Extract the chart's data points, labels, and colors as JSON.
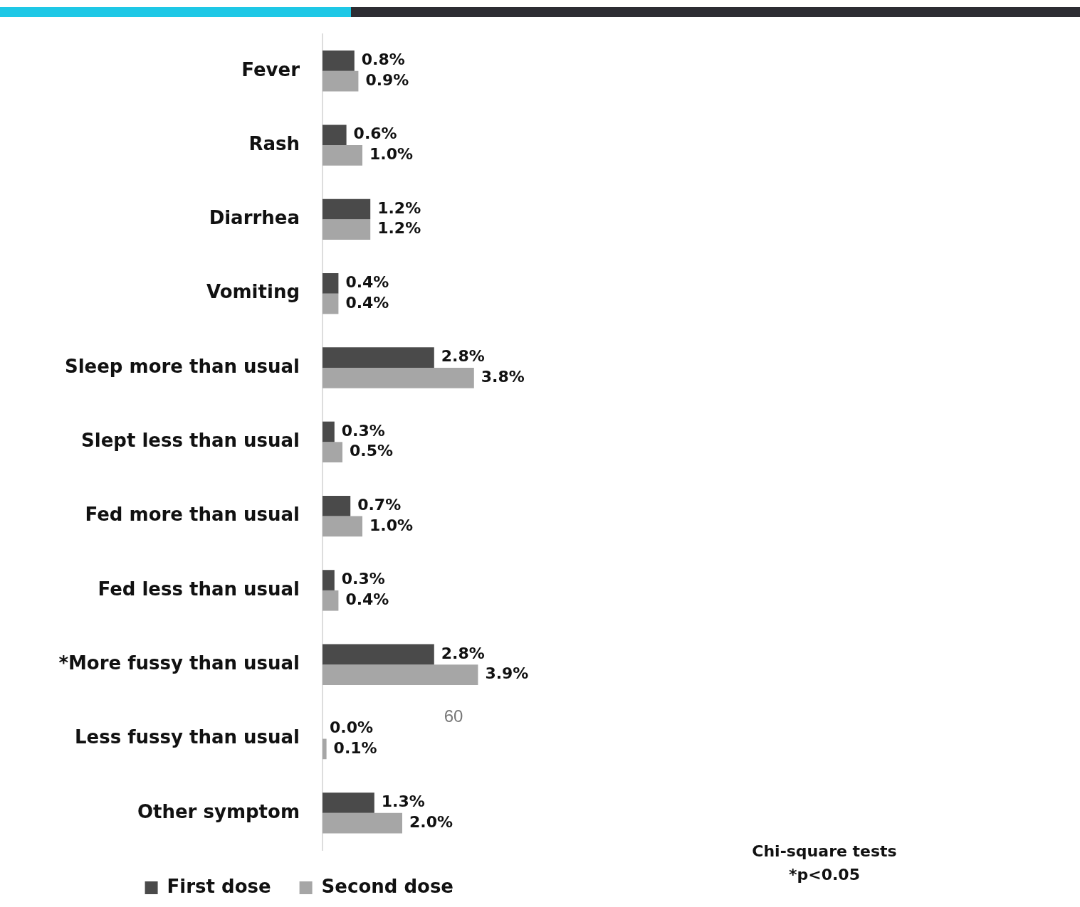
{
  "chart_data": {
    "type": "bar",
    "orientation": "horizontal",
    "categories": [
      "Fever",
      "Rash",
      "Diarrhea",
      "Vomiting",
      "Sleep more than usual",
      "Slept less than usual",
      "Fed more than usual",
      "Fed less than usual",
      "*More fussy than usual",
      "Less fussy than usual",
      "Other symptom"
    ],
    "series": [
      {
        "name": "First dose",
        "color": "#4a4a4a",
        "values": [
          0.8,
          0.6,
          1.2,
          0.4,
          2.8,
          0.3,
          0.7,
          0.3,
          2.8,
          0.0,
          1.3
        ],
        "value_labels": [
          "0.8%",
          "0.6%",
          "1.2%",
          "0.4%",
          "2.8%",
          "0.3%",
          "0.7%",
          "0.3%",
          "2.8%",
          "0.0%",
          "1.3%"
        ]
      },
      {
        "name": "Second dose",
        "color": "#a6a6a6",
        "values": [
          0.9,
          1.0,
          1.2,
          0.4,
          3.8,
          0.5,
          1.0,
          0.4,
          3.9,
          0.1,
          2.0
        ],
        "value_labels": [
          "0.9%",
          "1.0%",
          "1.2%",
          "0.4%",
          "3.8%",
          "0.5%",
          "1.0%",
          "0.4%",
          "3.9%",
          "0.1%",
          "2.0%"
        ]
      }
    ],
    "tick_labels": "y",
    "grid": false,
    "legend": "bottom",
    "annotations": [
      "Chi-square tests",
      "*p<0.05",
      "60"
    ]
  }
}
